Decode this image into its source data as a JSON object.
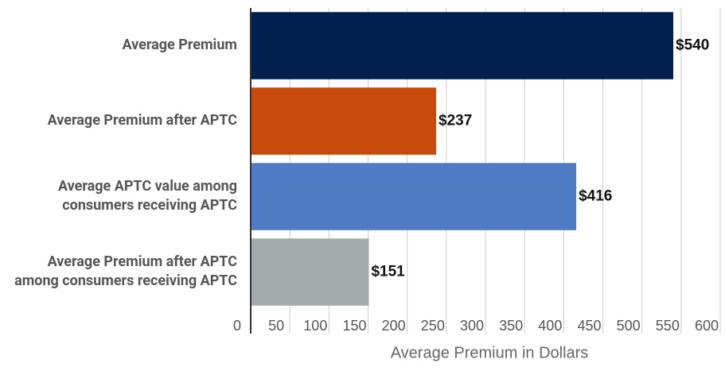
{
  "chart_data": {
    "type": "bar",
    "orientation": "horizontal",
    "categories": [
      "Average Premium",
      "Average Premium after APTC",
      "Average APTC value among consumers receiving APTC",
      "Average Premium after APTC among consumers receiving APTC"
    ],
    "values": [
      540,
      237,
      416,
      151
    ],
    "value_labels": [
      "$540",
      "$237",
      "$416",
      "$151"
    ],
    "colors": [
      "#001f4f",
      "#c84b0c",
      "#4f7bc4",
      "#a5aaad"
    ],
    "x_label": "Average Premium in Dollars",
    "xlim": [
      0,
      600
    ],
    "xticks": [
      0,
      50,
      100,
      150,
      200,
      250,
      300,
      350,
      400,
      450,
      500,
      550,
      600
    ],
    "grid": true
  }
}
